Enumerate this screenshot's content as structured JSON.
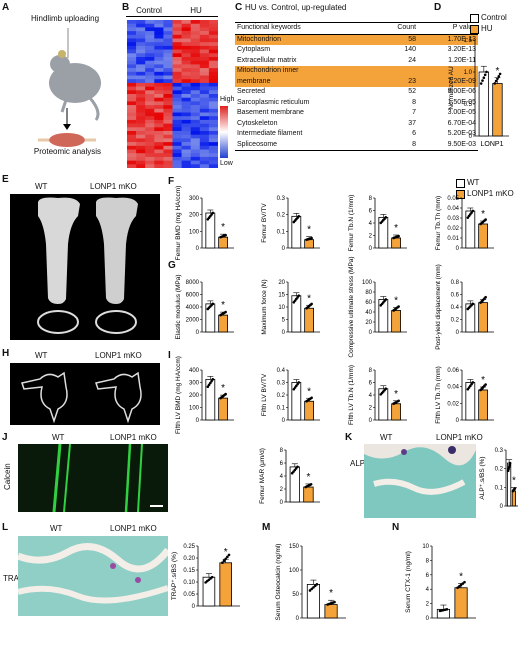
{
  "labels": [
    "A",
    "B",
    "C",
    "D",
    "E",
    "F",
    "G",
    "H",
    "I",
    "J",
    "K",
    "L",
    "M",
    "N"
  ],
  "colors": {
    "control_fill": "#ffffff",
    "hu_fill": "#f4a23a",
    "highlight": "#f4a23a",
    "bar_stroke": "#000000"
  },
  "panelA": {
    "title": "Hindlimb uploading",
    "caption": "Proteomic analysis",
    "icons": [
      "mouse-icon",
      "arrow-down-icon",
      "muscle-icon"
    ]
  },
  "panelB": {
    "col1": "Control",
    "col2": "HU",
    "legend_high": "High",
    "legend_low": "Low"
  },
  "panelC": {
    "title": "HU vs. Control, up-regulated",
    "headers": [
      "Functional keywords",
      "Count",
      "P value"
    ],
    "rows": [
      {
        "kw": "Mitochondrion",
        "count": "58",
        "p": "1.70E-13",
        "hl": true
      },
      {
        "kw": "Cytoplasm",
        "count": "140",
        "p": "3.20E-13",
        "hl": false
      },
      {
        "kw": "Extracellular matrix",
        "count": "24",
        "p": "1.20E-11",
        "hl": false
      },
      {
        "kw": "Mitochondrion inner",
        "count": "",
        "p": "",
        "hl": true
      },
      {
        "kw": "membrane",
        "count": "23",
        "p": "7.20E-09",
        "hl": true
      },
      {
        "kw": "Secreted",
        "count": "52",
        "p": "8.00E-06",
        "hl": false
      },
      {
        "kw": "Sarcoplasmic reticulum",
        "count": "8",
        "p": "1.50E-05",
        "hl": false
      },
      {
        "kw": "Basement membrane",
        "count": "7",
        "p": "3.00E-05",
        "hl": false
      },
      {
        "kw": "Cytoskeleton",
        "count": "37",
        "p": "6.70E-04",
        "hl": false
      },
      {
        "kw": "Intermediate filament",
        "count": "6",
        "p": "5.20E-03",
        "hl": false
      },
      {
        "kw": "Spliceosome",
        "count": "8",
        "p": "9.50E-03",
        "hl": false
      }
    ]
  },
  "panelD": {
    "legend": [
      "Control",
      "HU"
    ],
    "ylabel": "Normalized AU",
    "xlabel": "LONP1",
    "sig": "*"
  },
  "legend_wt_ko": [
    "WT",
    "LONP1 mKO"
  ],
  "img_labels": {
    "wt": "WT",
    "ko": "LONP1 mKO",
    "calcein": "Calcein",
    "alp": "ALP",
    "trap": "TRAP"
  },
  "chart_data": [
    {
      "type": "bar",
      "panel": "D",
      "categories": [
        "Control",
        "HU"
      ],
      "values": [
        1.0,
        0.82
      ],
      "ylabel": "Normalized AU",
      "xlabel": "LONP1",
      "ylim": [
        0,
        1.5
      ],
      "yticks": [
        "0",
        "0.5",
        "1.0",
        "1.5"
      ],
      "sig": "*"
    },
    {
      "type": "bar",
      "panel": "F",
      "categories": [
        "WT",
        "LONP1 mKO"
      ],
      "values": [
        210,
        65
      ],
      "ylabel": "Femur BMD (mg HA/ccm)",
      "ylim": [
        0,
        300
      ],
      "yticks": [
        "0",
        "100",
        "200",
        "300"
      ],
      "sig": "*"
    },
    {
      "type": "bar",
      "panel": "F",
      "categories": [
        "WT",
        "LONP1 mKO"
      ],
      "values": [
        0.19,
        0.05
      ],
      "ylabel": "Femur BV/TV",
      "ylim": [
        0,
        0.3
      ],
      "yticks": [
        "0",
        "0.1",
        "0.2",
        "0.3"
      ],
      "sig": "*"
    },
    {
      "type": "bar",
      "panel": "F",
      "categories": [
        "WT",
        "LONP1 mKO"
      ],
      "values": [
        4.9,
        1.6
      ],
      "ylabel": "Femur Tb.N (1/mm)",
      "ylim": [
        0,
        8
      ],
      "yticks": [
        "0",
        "2",
        "4",
        "6",
        "8"
      ],
      "sig": "*"
    },
    {
      "type": "bar",
      "panel": "F",
      "categories": [
        "WT",
        "LONP1 mKO"
      ],
      "values": [
        0.037,
        0.024
      ],
      "ylabel": "Femur Tb.Th (mm)",
      "ylim": [
        0,
        0.05
      ],
      "yticks": [
        "0",
        "0.01",
        "0.02",
        "0.03",
        "0.04",
        "0.05"
      ],
      "sig": "*"
    },
    {
      "type": "bar",
      "panel": "G",
      "categories": [
        "WT",
        "LONP1 mKO"
      ],
      "values": [
        4500,
        2700
      ],
      "ylabel": "Elastic modulus (MPa)",
      "ylim": [
        0,
        8000
      ],
      "yticks": [
        "0",
        "2000",
        "4000",
        "6000",
        "8000"
      ],
      "sig": "*"
    },
    {
      "type": "bar",
      "panel": "G",
      "categories": [
        "WT",
        "LONP1 mKO"
      ],
      "values": [
        14.5,
        9.5
      ],
      "ylabel": "Maximum force (N)",
      "ylim": [
        0,
        20
      ],
      "yticks": [
        "0",
        "5",
        "10",
        "15",
        "20"
      ],
      "sig": "*"
    },
    {
      "type": "bar",
      "panel": "G",
      "categories": [
        "WT",
        "LONP1 mKO"
      ],
      "values": [
        65,
        43
      ],
      "ylabel": "Compressive ultimate stress (MPa)",
      "ylim": [
        0,
        100
      ],
      "yticks": [
        "0",
        "20",
        "40",
        "60",
        "80",
        "100"
      ],
      "sig": "*"
    },
    {
      "type": "bar",
      "panel": "G",
      "categories": [
        "WT",
        "LONP1 mKO"
      ],
      "values": [
        0.45,
        0.47
      ],
      "ylabel": "Post-yield displacement (mm)",
      "ylim": [
        0,
        0.8
      ],
      "yticks": [
        "0",
        "0.2",
        "0.4",
        "0.6",
        "0.8"
      ],
      "sig": ""
    },
    {
      "type": "bar",
      "panel": "I",
      "categories": [
        "WT",
        "LONP1 mKO"
      ],
      "values": [
        325,
        175
      ],
      "ylabel": "Fifth LV BMD (mg HA/ccm)",
      "ylim": [
        0,
        400
      ],
      "yticks": [
        "0",
        "100",
        "200",
        "300",
        "400"
      ],
      "sig": "*"
    },
    {
      "type": "bar",
      "panel": "I",
      "categories": [
        "WT",
        "LONP1 mKO"
      ],
      "values": [
        0.3,
        0.15
      ],
      "ylabel": "Fifth LV BV/TV",
      "ylim": [
        0,
        0.4
      ],
      "yticks": [
        "0",
        "0.1",
        "0.2",
        "0.3",
        "0.4"
      ],
      "sig": "*"
    },
    {
      "type": "bar",
      "panel": "I",
      "categories": [
        "WT",
        "LONP1 mKO"
      ],
      "values": [
        5.0,
        2.6
      ],
      "ylabel": "Fifth LV Tb.N (1/mm)",
      "ylim": [
        0,
        8
      ],
      "yticks": [
        "0",
        "2",
        "4",
        "6",
        "8"
      ],
      "sig": "*"
    },
    {
      "type": "bar",
      "panel": "I",
      "categories": [
        "WT",
        "LONP1 mKO"
      ],
      "values": [
        0.045,
        0.036
      ],
      "ylabel": "Fifth LV Tb.Th (mm)",
      "ylim": [
        0,
        0.06
      ],
      "yticks": [
        "0",
        "0.02",
        "0.04",
        "0.06"
      ],
      "sig": "*"
    },
    {
      "type": "bar",
      "panel": "J",
      "categories": [
        "WT",
        "LONP1 mKO"
      ],
      "values": [
        5.4,
        2.3
      ],
      "ylabel": "Femur MAR (μm/d)",
      "ylim": [
        0,
        8
      ],
      "yticks": [
        "0",
        "2",
        "4",
        "6",
        "8"
      ],
      "sig": "*"
    },
    {
      "type": "bar",
      "panel": "K",
      "categories": [
        "WT",
        "LONP1 mKO"
      ],
      "values": [
        0.23,
        0.08
      ],
      "ylabel": "ALP⁺.s/BS (%)",
      "ylim": [
        0,
        0.3
      ],
      "yticks": [
        "0",
        "0.1",
        "0.2",
        "0.3"
      ],
      "sig": "*"
    },
    {
      "type": "bar",
      "panel": "L",
      "categories": [
        "WT",
        "LONP1 mKO"
      ],
      "values": [
        0.12,
        0.18
      ],
      "ylabel": "TRAP⁺.s/BS (%)",
      "ylim": [
        0,
        0.25
      ],
      "yticks": [
        "0",
        "0.05",
        "0.10",
        "0.15",
        "0.20",
        "0.25"
      ],
      "sig": "*"
    },
    {
      "type": "bar",
      "panel": "M",
      "categories": [
        "WT",
        "LONP1 mKO"
      ],
      "values": [
        70,
        28
      ],
      "ylabel": "Serum Osteocalcin (ng/ml)",
      "ylim": [
        0,
        150
      ],
      "yticks": [
        "0",
        "50",
        "100",
        "150"
      ],
      "sig": "*"
    },
    {
      "type": "bar",
      "panel": "N",
      "categories": [
        "WT",
        "LONP1 mKO"
      ],
      "values": [
        1.2,
        4.2
      ],
      "ylabel": "Serum CTX-1 (ng/ml)",
      "ylim": [
        0,
        10
      ],
      "yticks": [
        "0",
        "2",
        "4",
        "6",
        "8",
        "10"
      ],
      "sig": "*"
    }
  ]
}
